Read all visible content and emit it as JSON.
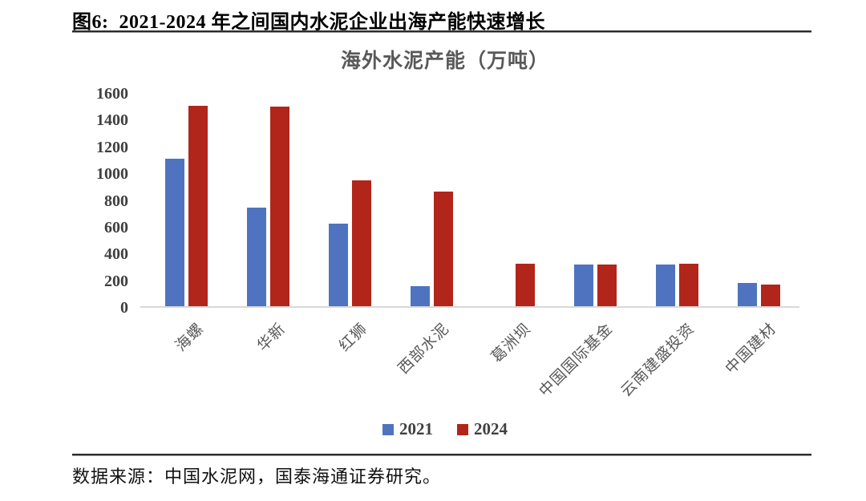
{
  "figure": {
    "caption": "图6:  2021-2024 年之间国内水泥企业出海产能快速增长",
    "source": "数据来源：中国水泥网，国泰海通证券研究。"
  },
  "chart_data": {
    "type": "bar",
    "title": "海外水泥产能（万吨）",
    "categories": [
      "海螺",
      "华新",
      "红狮",
      "西部水泥",
      "葛洲坝",
      "中国国际基金",
      "云南建盛投资",
      "中国建材"
    ],
    "series": [
      {
        "name": "2021",
        "color": "#4F73BF",
        "values": [
          1100,
          740,
          620,
          150,
          0,
          310,
          310,
          175
        ]
      },
      {
        "name": "2024",
        "color": "#B2251A",
        "values": [
          1500,
          1490,
          940,
          860,
          320,
          310,
          320,
          160
        ]
      }
    ],
    "xlabel": "",
    "ylabel": "",
    "ylim": [
      0,
      1600
    ],
    "yticks": [
      0,
      200,
      400,
      600,
      800,
      1000,
      1200,
      1400,
      1600
    ],
    "grid": false,
    "legend_position": "bottom"
  }
}
